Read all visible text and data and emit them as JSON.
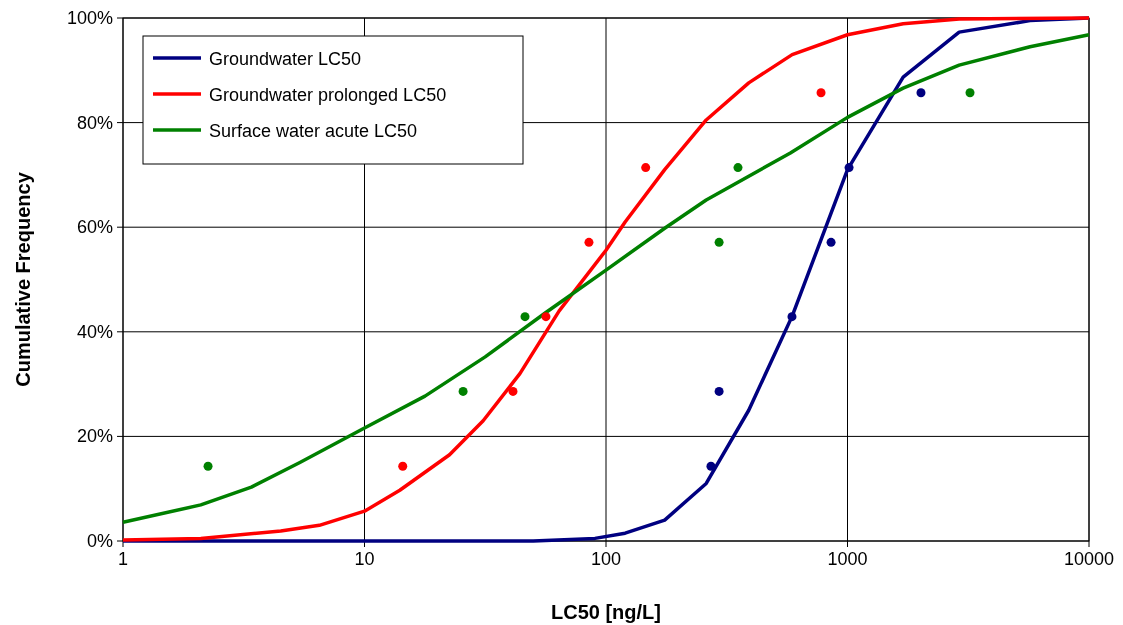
{
  "chart_data": {
    "type": "line",
    "xlabel": "LC50 [ng/L]",
    "ylabel": "Cumulative Frequency",
    "log": "x",
    "grid": true,
    "legend": "top left",
    "line_style": "solid",
    "xlim": [
      1,
      10000
    ],
    "xticks": [
      1,
      10,
      100,
      1000,
      10000
    ],
    "ylim": [
      0,
      100
    ],
    "yticks": [
      {
        "value": 0,
        "label": "0%"
      },
      {
        "value": 20,
        "label": "20%"
      },
      {
        "value": 40,
        "label": "40%"
      },
      {
        "value": 60,
        "label": "60%"
      },
      {
        "value": 80,
        "label": "80%"
      },
      {
        "value": 100,
        "label": "100%"
      }
    ],
    "series": [
      {
        "name": "Groundwater LC50",
        "color": "#000080",
        "marker": "none",
        "x": [
          1,
          10,
          50,
          90,
          120,
          175,
          260,
          390,
          590,
          1000,
          1700,
          2900,
          5700,
          10000
        ],
        "values": [
          0,
          0,
          0,
          0.5,
          1.5,
          4,
          11,
          25,
          43,
          71,
          88.7,
          97.3,
          99.5,
          100
        ]
      },
      {
        "name": "Groundwater prolonged LC50",
        "color": "#ff0000",
        "marker": "none",
        "x": [
          1,
          2.1,
          4.5,
          6.5,
          10,
          14,
          22.5,
          31,
          44,
          64,
          100,
          120,
          175,
          260,
          390,
          590,
          1000,
          1700,
          2900,
          10000
        ],
        "values": [
          0.2,
          0.5,
          1.9,
          3,
          5.7,
          9.7,
          16.5,
          23,
          32,
          44,
          55.6,
          61,
          71,
          80.5,
          87.6,
          93,
          96.8,
          98.9,
          99.8,
          100
        ]
      },
      {
        "name": "Surface water acute LC50",
        "color": "#008000",
        "marker": "none",
        "x": [
          1,
          2.1,
          3.4,
          5.4,
          10,
          17.8,
          31.6,
          56,
          100,
          175,
          260,
          580,
          1000,
          1700,
          2900,
          5700,
          10000
        ],
        "values": [
          3.6,
          6.9,
          10.3,
          15,
          21.6,
          27.7,
          35.2,
          43.6,
          51.8,
          59.8,
          65.2,
          74.2,
          81,
          86.6,
          91,
          94.5,
          96.8
        ]
      },
      {
        "type": "scatter",
        "color": "#000080",
        "marker": "circle",
        "x": [
          272,
          294,
          589,
          855,
          1015,
          2015
        ],
        "values": [
          14.3,
          28.6,
          42.9,
          57.1,
          71.4,
          85.7
        ]
      },
      {
        "type": "scatter",
        "color": "#ff0000",
        "marker": "circle",
        "x": [
          14.4,
          41.2,
          56.4,
          85,
          146,
          777
        ],
        "values": [
          14.3,
          28.6,
          42.9,
          57.1,
          71.4,
          85.7
        ]
      },
      {
        "type": "scatter",
        "color": "#008000",
        "marker": "circle",
        "x": [
          2.25,
          25.6,
          46.2,
          294,
          352,
          3216
        ],
        "values": [
          14.3,
          28.6,
          42.9,
          57.1,
          71.4,
          85.7
        ]
      }
    ]
  }
}
